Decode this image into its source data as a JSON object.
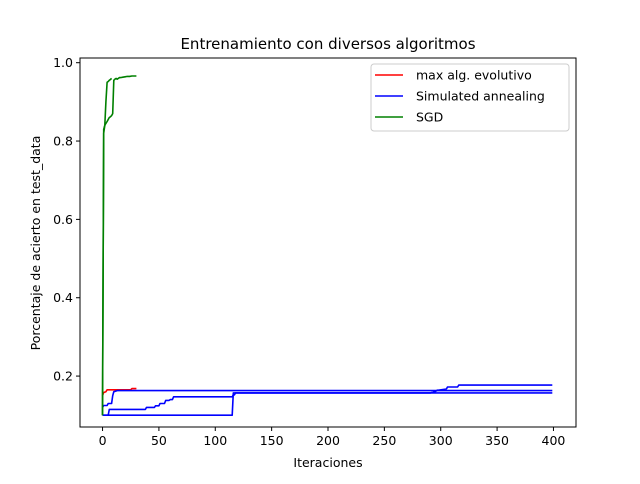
{
  "chart_data": {
    "type": "line",
    "title": "Entrenamiento con diversos algoritmos",
    "xlabel": "Iteraciones",
    "ylabel": "Porcentaje de acierto en test_data",
    "xlim": [
      -20,
      420
    ],
    "ylim": [
      0.07,
      1.012
    ],
    "xticks": [
      0,
      50,
      100,
      150,
      200,
      250,
      300,
      350,
      400
    ],
    "yticks": [
      0.2,
      0.4,
      0.6,
      0.8,
      1.0
    ],
    "ytick_labels": [
      "0.2",
      "0.4",
      "0.6",
      "0.8",
      "1.0"
    ],
    "grid": false,
    "legend_position": "top-right",
    "series": [
      {
        "name": "max alg. evolutivo",
        "color": "#ff0000",
        "x": [
          0,
          1,
          3,
          4,
          5,
          10,
          15,
          20,
          25,
          26,
          28,
          30
        ],
        "y": [
          0.15,
          0.158,
          0.16,
          0.165,
          0.165,
          0.165,
          0.165,
          0.165,
          0.165,
          0.168,
          0.168,
          0.168
        ]
      },
      {
        "name": "Simulated annealing",
        "color": "#0000ff",
        "x": [
          0,
          1,
          4,
          5,
          8,
          9,
          10,
          12,
          13,
          399
        ],
        "y": [
          0.12,
          0.125,
          0.125,
          0.13,
          0.13,
          0.15,
          0.16,
          0.162,
          0.163,
          0.163
        ]
      },
      {
        "name": "",
        "color": "#0000ff",
        "x": [
          0,
          5,
          6,
          38,
          39,
          46,
          47,
          50,
          51,
          55,
          56,
          59,
          60,
          62,
          63,
          115,
          116,
          117,
          118,
          291,
          292,
          293,
          294,
          295,
          297,
          298,
          305,
          306,
          315,
          316,
          399
        ],
        "y": [
          0.1,
          0.1,
          0.115,
          0.115,
          0.12,
          0.12,
          0.124,
          0.124,
          0.13,
          0.13,
          0.138,
          0.138,
          0.14,
          0.14,
          0.147,
          0.147,
          0.152,
          0.152,
          0.157,
          0.157,
          0.158,
          0.158,
          0.16,
          0.16,
          0.164,
          0.164,
          0.167,
          0.172,
          0.172,
          0.177,
          0.177
        ]
      },
      {
        "name": "",
        "color": "#0000ff",
        "x": [
          0,
          2,
          10,
          50,
          100,
          115,
          116,
          200,
          300,
          399
        ],
        "y": [
          0.1,
          0.1,
          0.1,
          0.1,
          0.1,
          0.1,
          0.157,
          0.157,
          0.157,
          0.157
        ]
      },
      {
        "name": "SGD",
        "color": "#008000",
        "x": [
          0,
          1,
          2,
          3,
          4,
          5,
          6,
          7,
          8,
          9,
          10,
          11,
          12,
          13,
          14,
          15,
          16,
          18,
          20,
          22,
          24,
          26,
          28,
          30
        ],
        "y": [
          0.1,
          0.83,
          0.84,
          0.845,
          0.85,
          0.855,
          0.86,
          0.862,
          0.865,
          0.87,
          0.955,
          0.958,
          0.96,
          0.958,
          0.96,
          0.962,
          0.962,
          0.963,
          0.964,
          0.965,
          0.965,
          0.966,
          0.966,
          0.966
        ]
      },
      {
        "name": "",
        "color": "#008000",
        "x": [
          0,
          1,
          2,
          3,
          4,
          5,
          6,
          7,
          8
        ],
        "y": [
          0.1,
          0.82,
          0.84,
          0.9,
          0.95,
          0.952,
          0.955,
          0.957,
          0.96
        ]
      }
    ]
  }
}
